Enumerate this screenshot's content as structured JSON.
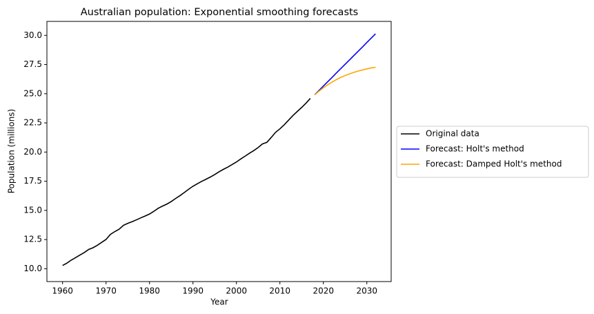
{
  "chart_data": {
    "type": "line",
    "title": "Australian population: Exponential smoothing forecasts",
    "x_label": "Year",
    "y_label": "Population (millions)",
    "xlim": [
      1956.4,
      2035.6
    ],
    "ylim": [
      8.9,
      31.2
    ],
    "xticks": [
      1960,
      1970,
      1980,
      1990,
      2000,
      2010,
      2020,
      2030
    ],
    "yticks": [
      {
        "value": 10,
        "label": "10.0"
      },
      12.5,
      {
        "value": 15,
        "label": "15.0"
      },
      17.5,
      {
        "value": 20,
        "label": "20.0"
      },
      22.5,
      {
        "value": 25,
        "label": "25.0"
      },
      27.5,
      {
        "value": 30,
        "label": "30.0"
      }
    ],
    "legend": "outside-right",
    "series": [
      {
        "name": "Original data",
        "color": "#000000",
        "x": [
          1960,
          1961,
          1962,
          1963,
          1964,
          1965,
          1966,
          1967,
          1968,
          1969,
          1970,
          1971,
          1972,
          1973,
          1974,
          1975,
          1976,
          1977,
          1978,
          1979,
          1980,
          1981,
          1982,
          1983,
          1984,
          1985,
          1986,
          1987,
          1988,
          1989,
          1990,
          1991,
          1992,
          1993,
          1994,
          1995,
          1996,
          1997,
          1998,
          1999,
          2000,
          2001,
          2002,
          2003,
          2004,
          2005,
          2006,
          2007,
          2008,
          2009,
          2010,
          2011,
          2012,
          2013,
          2014,
          2015,
          2016,
          2017
        ],
        "values": [
          10.28,
          10.48,
          10.74,
          10.95,
          11.17,
          11.39,
          11.65,
          11.8,
          12.01,
          12.26,
          12.51,
          12.94,
          13.18,
          13.38,
          13.72,
          13.89,
          14.03,
          14.19,
          14.36,
          14.52,
          14.69,
          14.92,
          15.18,
          15.37,
          15.54,
          15.76,
          16.02,
          16.26,
          16.53,
          16.81,
          17.07,
          17.28,
          17.49,
          17.67,
          17.86,
          18.07,
          18.31,
          18.52,
          18.71,
          18.93,
          19.15,
          19.41,
          19.65,
          19.9,
          20.13,
          20.39,
          20.7,
          20.83,
          21.25,
          21.69,
          21.99,
          22.34,
          22.74,
          23.13,
          23.48,
          23.82,
          24.19,
          24.6
        ]
      },
      {
        "name": "Forecast: Holt's method",
        "color": "#0000ff",
        "x": [
          2018,
          2019,
          2020,
          2021,
          2022,
          2023,
          2024,
          2025,
          2026,
          2027,
          2028,
          2029,
          2030,
          2031,
          2032
        ],
        "values": [
          24.91,
          25.28,
          25.66,
          26.03,
          26.4,
          26.78,
          27.15,
          27.52,
          27.89,
          28.27,
          28.64,
          29.01,
          29.39,
          29.76,
          30.13
        ]
      },
      {
        "name": "Forecast: Damped Holt's method",
        "color": "#ffa500",
        "x": [
          2018,
          2019,
          2020,
          2021,
          2022,
          2023,
          2024,
          2025,
          2026,
          2027,
          2028,
          2029,
          2030,
          2031,
          2032
        ],
        "values": [
          24.9,
          25.22,
          25.51,
          25.77,
          26.0,
          26.21,
          26.4,
          26.56,
          26.7,
          26.83,
          26.94,
          27.04,
          27.13,
          27.21,
          27.27
        ]
      }
    ]
  }
}
